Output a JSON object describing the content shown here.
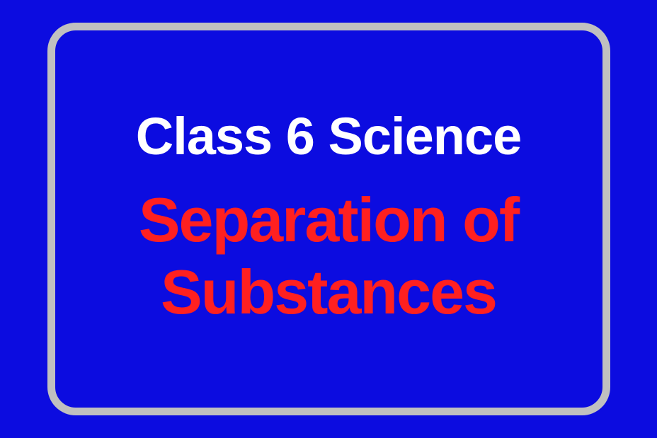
{
  "card": {
    "title": "Class 6 Science",
    "subtitle": "Separation of Substances",
    "background_color": "#0c0ce0",
    "border_color": "#c0c0c0",
    "title_color": "#ffffff",
    "subtitle_color": "#ff2020",
    "title_fontsize": 74,
    "subtitle_fontsize": 88,
    "border_width": 11,
    "border_radius": 40
  }
}
